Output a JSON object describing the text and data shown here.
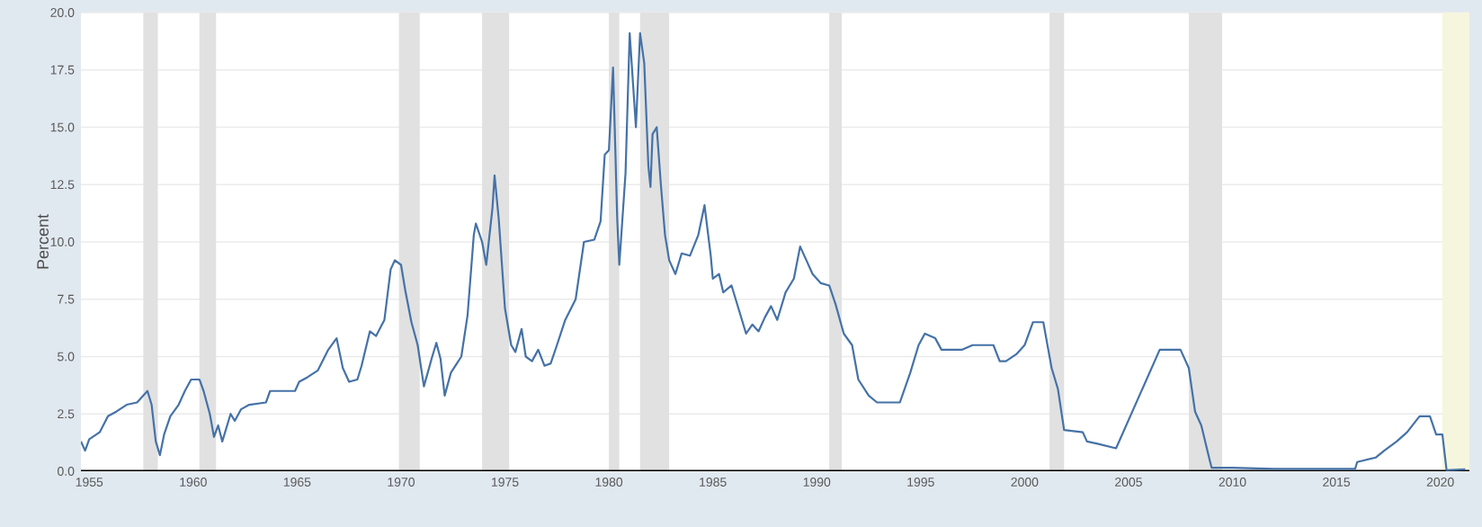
{
  "chart_data": {
    "type": "line",
    "ylabel": "Percent",
    "grid": "y",
    "xlim": [
      1954.6,
      2021.4
    ],
    "ylim": [
      0,
      20
    ],
    "xticks": [
      1955,
      1960,
      1965,
      1970,
      1975,
      1980,
      1985,
      1990,
      1995,
      2000,
      2005,
      2010,
      2015,
      2020
    ],
    "yticks": [
      {
        "value": 0,
        "label": "0.0"
      },
      {
        "value": 2.5,
        "label": "2.5"
      },
      {
        "value": 5,
        "label": "5.0"
      },
      {
        "value": 7.5,
        "label": "7.5"
      },
      {
        "value": 10,
        "label": "10.0"
      },
      {
        "value": 12.5,
        "label": "12.5"
      },
      {
        "value": 15,
        "label": "15.0"
      },
      {
        "value": 17.5,
        "label": "17.5"
      },
      {
        "value": 20,
        "label": "20.0"
      }
    ],
    "bands": [
      {
        "axis": "x",
        "from": 1957.6,
        "to": 1958.3,
        "color": "#e1e1e1"
      },
      {
        "axis": "x",
        "from": 1960.3,
        "to": 1961.1,
        "color": "#e1e1e1"
      },
      {
        "axis": "x",
        "from": 1969.9,
        "to": 1970.9,
        "color": "#e1e1e1"
      },
      {
        "axis": "x",
        "from": 1973.9,
        "to": 1975.2,
        "color": "#e1e1e1"
      },
      {
        "axis": "x",
        "from": 1980.0,
        "to": 1980.5,
        "color": "#e1e1e1"
      },
      {
        "axis": "x",
        "from": 1981.5,
        "to": 1982.9,
        "color": "#e1e1e1"
      },
      {
        "axis": "x",
        "from": 1990.6,
        "to": 1991.2,
        "color": "#e1e1e1"
      },
      {
        "axis": "x",
        "from": 2001.2,
        "to": 2001.9,
        "color": "#e1e1e1"
      },
      {
        "axis": "x",
        "from": 2007.9,
        "to": 2009.5,
        "color": "#e1e1e1"
      },
      {
        "axis": "x",
        "from": 2020.1,
        "to": 2021.4,
        "color": "#f6f6de"
      }
    ],
    "series": [
      {
        "color": "#4572a7",
        "x": [
          1954.6,
          1954.8,
          1955.0,
          1955.5,
          1955.9,
          1956.3,
          1956.8,
          1957.3,
          1957.8,
          1958.0,
          1958.2,
          1958.4,
          1958.6,
          1958.9,
          1959.3,
          1959.6,
          1959.9,
          1960.3,
          1960.5,
          1960.8,
          1961.0,
          1961.2,
          1961.4,
          1961.8,
          1962.0,
          1962.3,
          1962.7,
          1963.5,
          1963.7,
          1964.5,
          1964.9,
          1965.1,
          1965.5,
          1966.0,
          1966.5,
          1966.9,
          1967.2,
          1967.5,
          1967.9,
          1968.1,
          1968.5,
          1968.8,
          1969.2,
          1969.5,
          1969.7,
          1970.0,
          1970.2,
          1970.5,
          1970.8,
          1971.1,
          1971.5,
          1971.7,
          1971.9,
          1972.1,
          1972.4,
          1972.9,
          1973.2,
          1973.5,
          1973.6,
          1973.9,
          1974.1,
          1974.4,
          1974.5,
          1974.7,
          1975.0,
          1975.3,
          1975.5,
          1975.8,
          1976.0,
          1976.3,
          1976.6,
          1976.9,
          1977.2,
          1977.5,
          1977.9,
          1978.4,
          1978.8,
          1979.3,
          1979.6,
          1979.8,
          1980.0,
          1980.2,
          1980.4,
          1980.5,
          1980.8,
          1981.0,
          1981.3,
          1981.5,
          1981.7,
          1981.9,
          1982.0,
          1982.1,
          1982.3,
          1982.5,
          1982.7,
          1982.9,
          1983.2,
          1983.5,
          1983.9,
          1984.3,
          1984.6,
          1984.9,
          1985.0,
          1985.3,
          1985.5,
          1985.9,
          1986.3,
          1986.6,
          1986.9,
          1987.2,
          1987.5,
          1987.8,
          1988.1,
          1988.5,
          1988.9,
          1989.2,
          1989.5,
          1989.8,
          1990.2,
          1990.6,
          1990.9,
          1991.3,
          1991.7,
          1992.0,
          1992.5,
          1992.9,
          1993.5,
          1994.0,
          1994.5,
          1994.9,
          1995.2,
          1995.7,
          1996.0,
          1996.5,
          1997.0,
          1997.5,
          1998.5,
          1998.8,
          1999.1,
          1999.6,
          2000.0,
          2000.4,
          2000.9,
          2001.3,
          2001.6,
          2001.9,
          2002.8,
          2003.0,
          2003.5,
          2004.4,
          2006.5,
          2007.5,
          2007.9,
          2008.2,
          2008.5,
          2008.9,
          2009.0,
          2010.0,
          2012.0,
          2015.9,
          2016.0,
          2016.9,
          2017.3,
          2017.9,
          2018.4,
          2019.0,
          2019.5,
          2019.8,
          2020.1,
          2020.3,
          2021.2
        ],
        "values": [
          1.3,
          0.9,
          1.4,
          1.7,
          2.4,
          2.6,
          2.9,
          3.0,
          3.5,
          2.9,
          1.3,
          0.7,
          1.6,
          2.4,
          2.9,
          3.5,
          4.0,
          4.0,
          3.5,
          2.5,
          1.5,
          2.0,
          1.3,
          2.5,
          2.2,
          2.7,
          2.9,
          3.0,
          3.5,
          3.5,
          3.5,
          3.9,
          4.1,
          4.4,
          5.3,
          5.8,
          4.5,
          3.9,
          4.0,
          4.6,
          6.1,
          5.9,
          6.6,
          8.8,
          9.2,
          9.0,
          7.9,
          6.5,
          5.5,
          3.7,
          5.0,
          5.6,
          4.9,
          3.3,
          4.3,
          5.0,
          6.8,
          10.3,
          10.8,
          10.0,
          9.0,
          11.5,
          12.9,
          11.0,
          7.1,
          5.5,
          5.2,
          6.2,
          5.0,
          4.8,
          5.3,
          4.6,
          4.7,
          5.5,
          6.6,
          7.5,
          10.0,
          10.1,
          10.9,
          13.8,
          14.0,
          17.6,
          11.0,
          9.0,
          13.0,
          19.1,
          15.0,
          19.1,
          17.8,
          13.3,
          12.4,
          14.7,
          15.0,
          12.5,
          10.3,
          9.2,
          8.6,
          9.5,
          9.4,
          10.3,
          11.6,
          9.4,
          8.4,
          8.6,
          7.8,
          8.1,
          6.9,
          6.0,
          6.4,
          6.1,
          6.7,
          7.2,
          6.6,
          7.8,
          8.4,
          9.8,
          9.2,
          8.6,
          8.2,
          8.1,
          7.3,
          6.0,
          5.5,
          4.0,
          3.3,
          3.0,
          3.0,
          3.0,
          4.3,
          5.5,
          6.0,
          5.8,
          5.3,
          5.3,
          5.3,
          5.5,
          5.5,
          4.8,
          4.8,
          5.1,
          5.5,
          6.5,
          6.5,
          4.5,
          3.6,
          1.8,
          1.7,
          1.3,
          1.2,
          1.0,
          5.3,
          5.3,
          4.5,
          2.6,
          2.0,
          0.5,
          0.15,
          0.15,
          0.1,
          0.1,
          0.4,
          0.6,
          0.9,
          1.3,
          1.7,
          2.4,
          2.4,
          1.6,
          1.6,
          0.05,
          0.08
        ]
      }
    ]
  }
}
